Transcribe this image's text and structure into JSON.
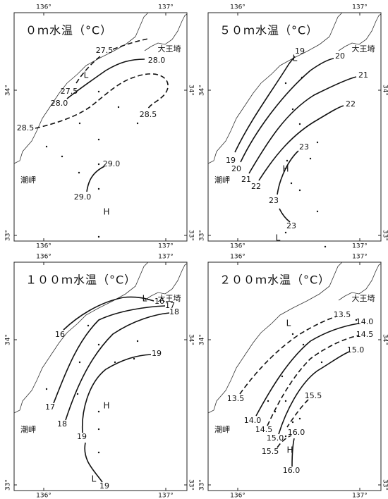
{
  "panels": [
    {
      "title": "０ｍ水温（°C）",
      "lon_labels_top": [
        "136°",
        "137°"
      ],
      "lon_labels_bottom": [
        "136°",
        "137°"
      ],
      "lat_labels_left": [
        "34°",
        "33°"
      ],
      "lat_labels_right": [
        "34°",
        "33°"
      ],
      "places": [
        "大王埼",
        "潮岬"
      ],
      "contour_labels": [
        "27.5",
        "27.5",
        "28.0",
        "28.0",
        "28.5",
        "28.5",
        "29.0",
        "29.0"
      ],
      "markers": [
        "L",
        "H"
      ]
    },
    {
      "title": "５０ｍ水温（°C）",
      "lon_labels_top": [
        "136°",
        "137°"
      ],
      "lon_labels_bottom": [
        "136°",
        "137°"
      ],
      "lat_labels_left": [
        "34°",
        "33°"
      ],
      "lat_labels_right": [
        "34°",
        "33°"
      ],
      "places": [
        "大王埼",
        "潮岬"
      ],
      "contour_labels": [
        "19",
        "20",
        "21",
        "22",
        "23",
        "19",
        "20",
        "21",
        "22",
        "23",
        "23"
      ],
      "markers": [
        "L",
        "H",
        "L"
      ]
    },
    {
      "title": "１００ｍ水温（°C）",
      "lon_labels_top": [
        "136°",
        "137°"
      ],
      "lon_labels_bottom": [
        "136°",
        "137°"
      ],
      "lat_labels_left": [
        "34°",
        "33°"
      ],
      "lat_labels_right": [
        "34°",
        "33°"
      ],
      "places": [
        "大王埼",
        "潮岬"
      ],
      "contour_labels": [
        "16",
        "17",
        "18",
        "16",
        "19",
        "17",
        "18",
        "19",
        "19"
      ],
      "markers": [
        "L",
        "H",
        "L"
      ]
    },
    {
      "title": "２００ｍ水温（°C）",
      "lon_labels_top": [
        "136°",
        "137°"
      ],
      "lon_labels_bottom": [
        "136°",
        "137°"
      ],
      "lat_labels_left": [
        "34°",
        "33°"
      ],
      "lat_labels_right": [
        "34°",
        "33°"
      ],
      "places": [
        "大王埼",
        "潮岬"
      ],
      "contour_labels": [
        "13.5",
        "14.0",
        "14.5",
        "15.0",
        "15.5",
        "13.5",
        "14.0",
        "14.5",
        "15.0",
        "16.0",
        "15.5",
        "16.0"
      ],
      "markers": [
        "L",
        "H"
      ]
    }
  ]
}
